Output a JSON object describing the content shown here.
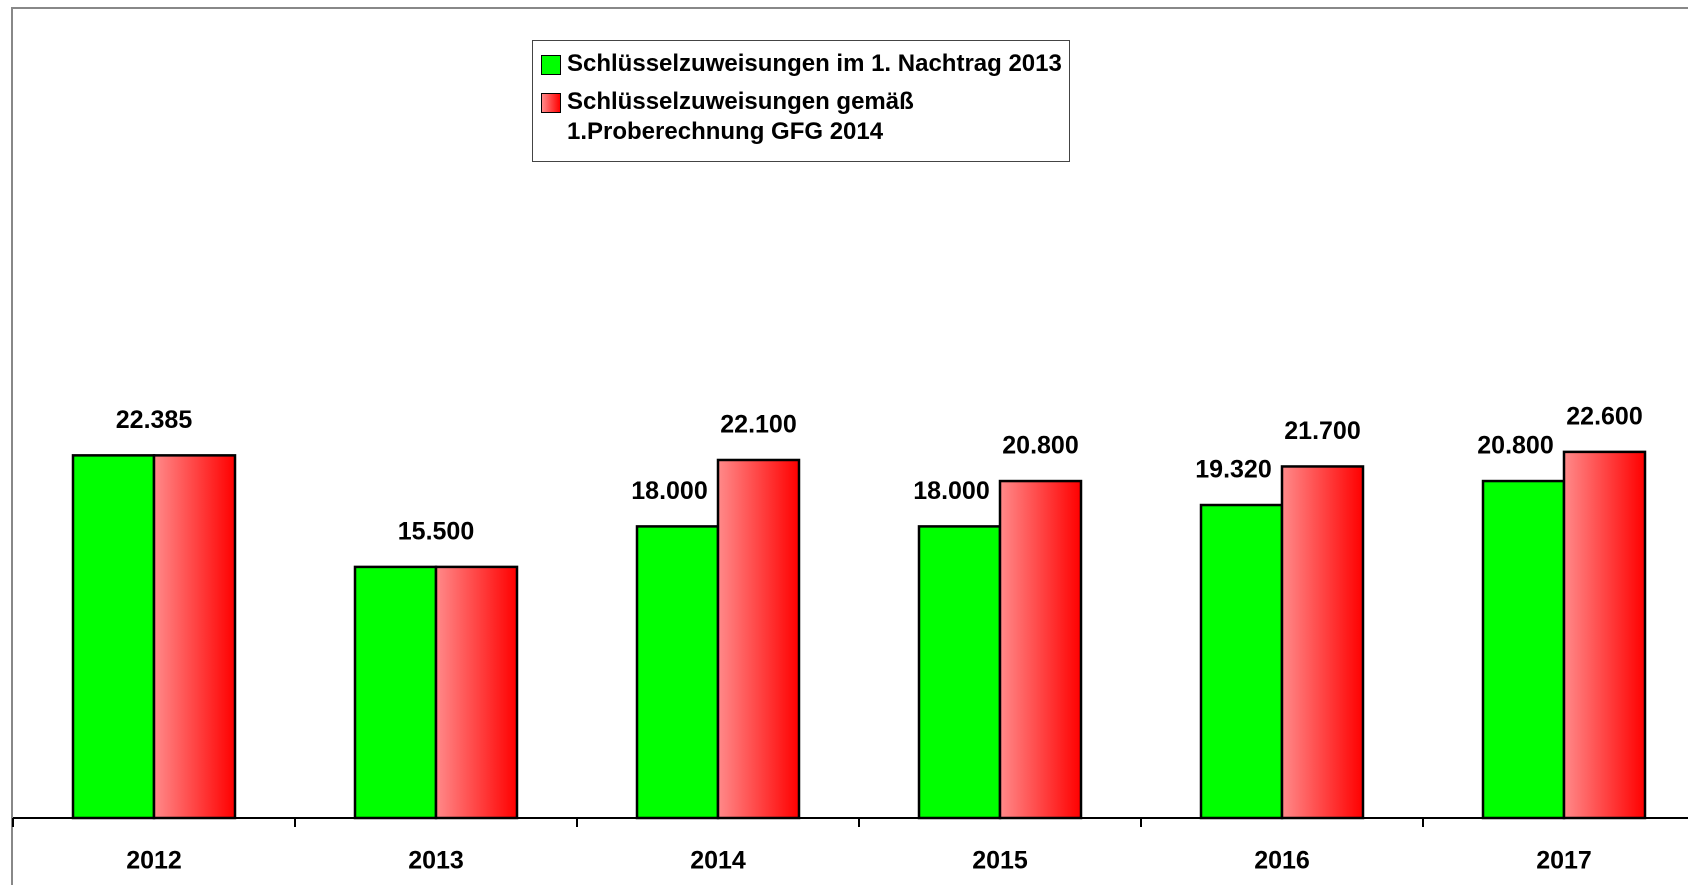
{
  "chart_data": {
    "type": "bar",
    "categories": [
      "2012",
      "2013",
      "2014",
      "2015",
      "2016",
      "2017"
    ],
    "series": [
      {
        "name": "Schlüsselzuweisungen im 1. Nachtrag 2013",
        "color": "#00ff00",
        "values": [
          22385,
          15500,
          18000,
          18000,
          19320,
          20800
        ],
        "value_labels": [
          "22.385",
          "15.500",
          "18.000",
          "18.000",
          "19.320",
          "20.800"
        ]
      },
      {
        "name": "Schlüsselzuweisungen gemäß 1.Proberechnung GFG 2014",
        "color": "#ff0000",
        "values": [
          22385,
          15500,
          22100,
          20800,
          21700,
          22600
        ],
        "value_labels": [
          null,
          null,
          "22.100",
          "20.800",
          "21.700",
          "22.600"
        ]
      }
    ],
    "ylim": [
      0,
      50000
    ],
    "legend": "top-center"
  }
}
